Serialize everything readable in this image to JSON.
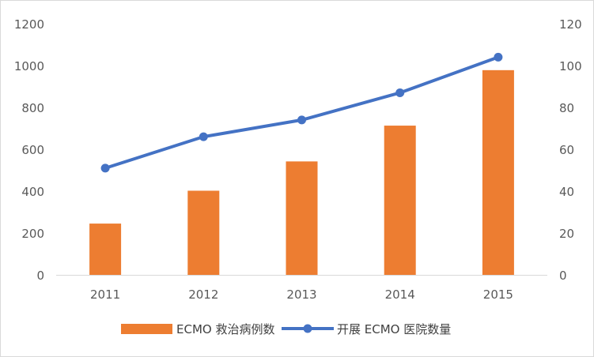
{
  "chart_data": {
    "type": "bar+line",
    "categories": [
      "2011",
      "2012",
      "2013",
      "2014",
      "2015"
    ],
    "series": [
      {
        "name": "ECMO 救治病例数",
        "type": "bar",
        "axis": "left",
        "color": "#ed7d31",
        "values": [
          245,
          402,
          542,
          713,
          978
        ]
      },
      {
        "name": "开展 ECMO 医院数量",
        "type": "line",
        "axis": "right",
        "color": "#4472c4",
        "values": [
          51,
          66,
          74,
          87,
          104
        ]
      }
    ],
    "y_left": {
      "ylim": [
        0,
        1200
      ],
      "ticks": [
        "0",
        "200",
        "400",
        "600",
        "800",
        "1000",
        "1200"
      ]
    },
    "y_right": {
      "ylim": [
        0,
        120
      ],
      "ticks": [
        "0",
        "20",
        "40",
        "60",
        "80",
        "100",
        "120"
      ]
    },
    "legend_position": "bottom",
    "grid": false
  }
}
